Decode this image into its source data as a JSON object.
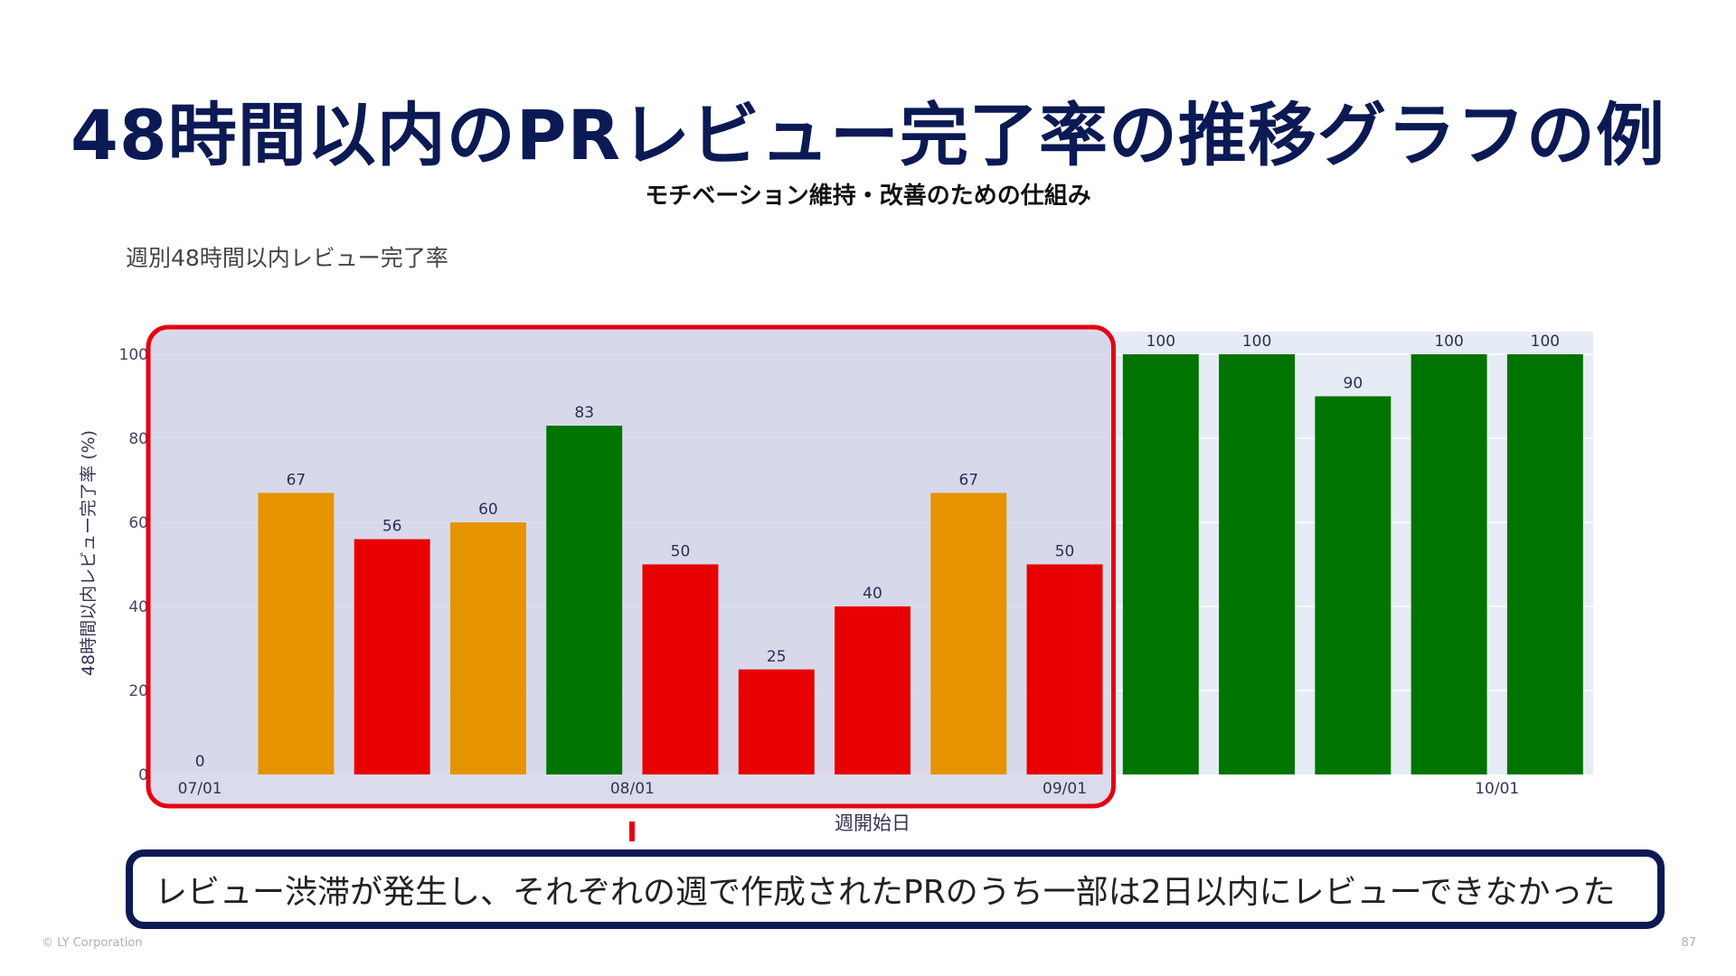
{
  "slide": {
    "title": "48時間以内のPRレビュー完了率の推移グラフの例",
    "subtitle": "モチベーション維持・改善のための仕組み",
    "callout": "レビュー渋滞が発生し、それぞれの週で作成されたPRのうち一部は2日以内にレビューできなかった",
    "footer": "© LY Corporation",
    "page_number": "87"
  },
  "chart_data": {
    "type": "bar",
    "title": "週別48時間以内レビュー完了率",
    "xlabel": "週開始日",
    "ylabel": "48時間以内レビュー完了率 (%)",
    "ylim": [
      0,
      100
    ],
    "grid": true,
    "x_ticks": [
      "07/01",
      "08/01",
      "09/01",
      "10/01"
    ],
    "y_ticks": [
      "0",
      "20",
      "40",
      "60",
      "80",
      "100"
    ],
    "values": [
      0,
      67,
      56,
      60,
      83,
      50,
      25,
      40,
      67,
      50,
      100,
      100,
      90,
      100,
      100
    ],
    "value_labels": [
      "0",
      "67",
      "56",
      "60",
      "83",
      "50",
      "25",
      "40",
      "67",
      "50",
      "100",
      "100",
      "90",
      "100",
      "100"
    ],
    "tick_positions": [
      0,
      4.5,
      9,
      13.5
    ],
    "highlight_range": [
      0,
      9
    ],
    "colors": {
      "high": "#007400",
      "mid": "#e59400",
      "low": "#e80000",
      "plot_bg": "#e6ecf5",
      "highlight_border": "#e60012",
      "highlight_fill": "#d3d6e7"
    },
    "color_thresholds": {
      "high": 80,
      "mid": 60
    }
  }
}
